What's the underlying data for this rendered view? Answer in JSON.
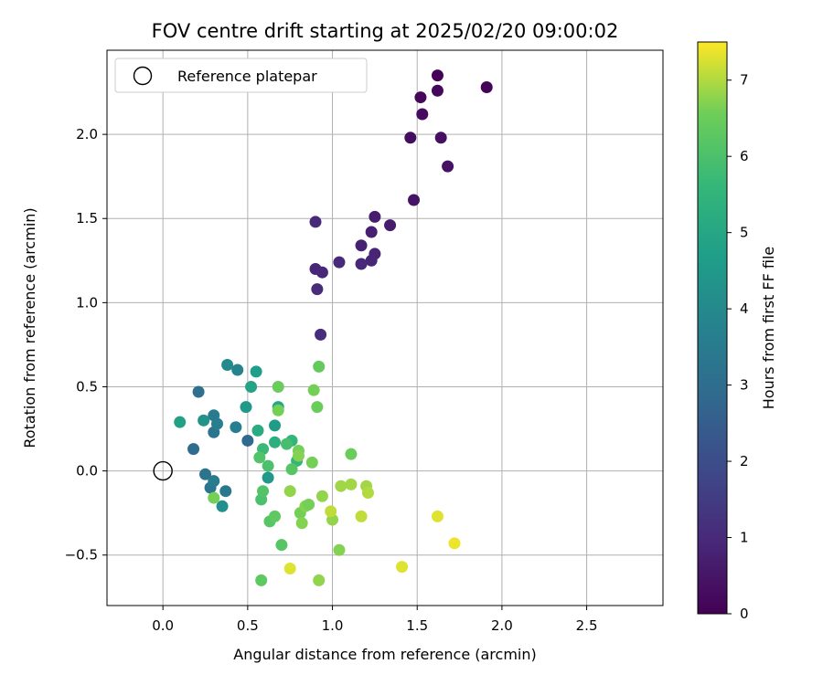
{
  "chart_data": {
    "type": "scatter",
    "title": "FOV centre drift starting at 2025/02/20 09:00:02",
    "xlabel": "Angular distance from reference (arcmin)",
    "ylabel": "Rotation from reference (arcmin)",
    "xlim": [
      -0.33,
      2.95
    ],
    "ylim": [
      -0.8,
      2.5
    ],
    "xticks": [
      "0.0",
      "0.5",
      "1.0",
      "1.5",
      "2.0",
      "2.5"
    ],
    "xtick_values": [
      0,
      0.5,
      1.0,
      1.5,
      2.0,
      2.5
    ],
    "yticks": [
      "−0.5",
      "0.0",
      "0.5",
      "1.0",
      "1.5",
      "2.0"
    ],
    "ytick_values": [
      -0.5,
      0,
      0.5,
      1.0,
      1.5,
      2.0
    ],
    "grid": true,
    "legend": {
      "placement": "top-left",
      "entries": [
        "Reference platepar"
      ]
    },
    "reference_point": {
      "x": 0.0,
      "y": 0.0
    },
    "colorbar": {
      "label": "Hours from first FF file",
      "range": [
        0,
        7.5
      ],
      "ticks": [
        "0",
        "1",
        "2",
        "3",
        "4",
        "5",
        "6",
        "7"
      ],
      "tick_values": [
        0,
        1,
        2,
        3,
        4,
        5,
        6,
        7
      ],
      "colormap": "viridis"
    },
    "points": [
      {
        "x": 1.62,
        "y": 2.35,
        "h": 0.05
      },
      {
        "x": 1.91,
        "y": 2.28,
        "h": 0.1
      },
      {
        "x": 1.52,
        "y": 2.22,
        "h": 0.15
      },
      {
        "x": 1.62,
        "y": 2.26,
        "h": 0.2
      },
      {
        "x": 1.53,
        "y": 2.12,
        "h": 0.25
      },
      {
        "x": 1.46,
        "y": 1.98,
        "h": 0.3
      },
      {
        "x": 1.64,
        "y": 1.98,
        "h": 0.35
      },
      {
        "x": 1.68,
        "y": 1.81,
        "h": 0.4
      },
      {
        "x": 1.48,
        "y": 1.61,
        "h": 0.45
      },
      {
        "x": 1.34,
        "y": 1.46,
        "h": 0.65
      },
      {
        "x": 1.25,
        "y": 1.51,
        "h": 0.7
      },
      {
        "x": 1.23,
        "y": 1.42,
        "h": 0.75
      },
      {
        "x": 1.17,
        "y": 1.34,
        "h": 0.8
      },
      {
        "x": 1.25,
        "y": 1.29,
        "h": 0.85
      },
      {
        "x": 1.23,
        "y": 1.25,
        "h": 0.9
      },
      {
        "x": 1.17,
        "y": 1.23,
        "h": 0.95
      },
      {
        "x": 1.04,
        "y": 1.24,
        "h": 1.0
      },
      {
        "x": 0.9,
        "y": 1.2,
        "h": 0.9
      },
      {
        "x": 0.94,
        "y": 1.18,
        "h": 0.95
      },
      {
        "x": 0.9,
        "y": 1.48,
        "h": 1.0
      },
      {
        "x": 0.91,
        "y": 1.08,
        "h": 1.05
      },
      {
        "x": 0.93,
        "y": 0.81,
        "h": 1.1
      },
      {
        "x": 0.5,
        "y": 0.18,
        "h": 2.9
      },
      {
        "x": 0.18,
        "y": 0.13,
        "h": 3.0
      },
      {
        "x": 0.21,
        "y": 0.47,
        "h": 3.1
      },
      {
        "x": 0.3,
        "y": 0.23,
        "h": 3.3
      },
      {
        "x": 0.25,
        "y": -0.02,
        "h": 3.2
      },
      {
        "x": 0.28,
        "y": -0.1,
        "h": 3.3
      },
      {
        "x": 0.37,
        "y": -0.12,
        "h": 3.4
      },
      {
        "x": 0.3,
        "y": -0.06,
        "h": 3.5
      },
      {
        "x": 0.3,
        "y": 0.33,
        "h": 3.5
      },
      {
        "x": 0.32,
        "y": 0.28,
        "h": 3.6
      },
      {
        "x": 0.43,
        "y": 0.26,
        "h": 3.6
      },
      {
        "x": 0.44,
        "y": 0.6,
        "h": 3.8
      },
      {
        "x": 0.38,
        "y": 0.63,
        "h": 4.0
      },
      {
        "x": 0.35,
        "y": -0.21,
        "h": 4.2
      },
      {
        "x": 0.24,
        "y": 0.3,
        "h": 4.3
      },
      {
        "x": 0.49,
        "y": 0.38,
        "h": 4.5
      },
      {
        "x": 0.66,
        "y": 0.27,
        "h": 4.6
      },
      {
        "x": 0.62,
        "y": -0.04,
        "h": 4.5
      },
      {
        "x": 0.55,
        "y": 0.59,
        "h": 4.7
      },
      {
        "x": 0.1,
        "y": 0.29,
        "h": 4.8
      },
      {
        "x": 0.52,
        "y": 0.5,
        "h": 4.9
      },
      {
        "x": 0.68,
        "y": 0.38,
        "h": 5.0
      },
      {
        "x": 0.56,
        "y": 0.24,
        "h": 5.2
      },
      {
        "x": 0.66,
        "y": 0.17,
        "h": 5.3
      },
      {
        "x": 0.76,
        "y": 0.18,
        "h": 5.5
      },
      {
        "x": 0.79,
        "y": 0.06,
        "h": 5.6
      },
      {
        "x": 0.59,
        "y": 0.13,
        "h": 5.7
      },
      {
        "x": 0.73,
        "y": 0.16,
        "h": 5.9
      },
      {
        "x": 0.62,
        "y": 0.03,
        "h": 6.0
      },
      {
        "x": 0.57,
        "y": 0.08,
        "h": 6.1
      },
      {
        "x": 0.76,
        "y": 0.01,
        "h": 6.2
      },
      {
        "x": 0.58,
        "y": -0.17,
        "h": 6.0
      },
      {
        "x": 0.59,
        "y": -0.12,
        "h": 6.1
      },
      {
        "x": 0.63,
        "y": -0.3,
        "h": 6.2
      },
      {
        "x": 0.66,
        "y": -0.27,
        "h": 6.3
      },
      {
        "x": 0.7,
        "y": -0.44,
        "h": 6.2
      },
      {
        "x": 0.58,
        "y": -0.65,
        "h": 6.3
      },
      {
        "x": 0.3,
        "y": -0.16,
        "h": 6.6
      },
      {
        "x": 0.68,
        "y": 0.5,
        "h": 6.5
      },
      {
        "x": 0.68,
        "y": 0.36,
        "h": 6.6
      },
      {
        "x": 0.8,
        "y": 0.12,
        "h": 6.6
      },
      {
        "x": 0.89,
        "y": 0.48,
        "h": 6.6
      },
      {
        "x": 0.92,
        "y": 0.62,
        "h": 6.4
      },
      {
        "x": 0.91,
        "y": 0.38,
        "h": 6.5
      },
      {
        "x": 0.8,
        "y": 0.09,
        "h": 6.7
      },
      {
        "x": 0.88,
        "y": 0.05,
        "h": 6.6
      },
      {
        "x": 0.81,
        "y": -0.25,
        "h": 6.6
      },
      {
        "x": 0.82,
        "y": -0.31,
        "h": 6.7
      },
      {
        "x": 0.84,
        "y": -0.21,
        "h": 6.7
      },
      {
        "x": 0.86,
        "y": -0.2,
        "h": 6.6
      },
      {
        "x": 0.75,
        "y": -0.12,
        "h": 6.8
      },
      {
        "x": 0.94,
        "y": -0.15,
        "h": 6.8
      },
      {
        "x": 1.0,
        "y": -0.29,
        "h": 6.8
      },
      {
        "x": 1.04,
        "y": -0.47,
        "h": 6.7
      },
      {
        "x": 0.92,
        "y": -0.65,
        "h": 6.8
      },
      {
        "x": 1.11,
        "y": 0.1,
        "h": 6.5
      },
      {
        "x": 1.05,
        "y": -0.09,
        "h": 6.9
      },
      {
        "x": 1.11,
        "y": -0.08,
        "h": 6.9
      },
      {
        "x": 1.2,
        "y": -0.09,
        "h": 6.9
      },
      {
        "x": 1.21,
        "y": -0.13,
        "h": 7.0
      },
      {
        "x": 0.99,
        "y": -0.24,
        "h": 7.1
      },
      {
        "x": 1.17,
        "y": -0.27,
        "h": 7.1
      },
      {
        "x": 0.75,
        "y": -0.58,
        "h": 7.3
      },
      {
        "x": 1.41,
        "y": -0.57,
        "h": 7.3
      },
      {
        "x": 1.62,
        "y": -0.27,
        "h": 7.3
      },
      {
        "x": 1.72,
        "y": -0.43,
        "h": 7.4
      }
    ]
  }
}
